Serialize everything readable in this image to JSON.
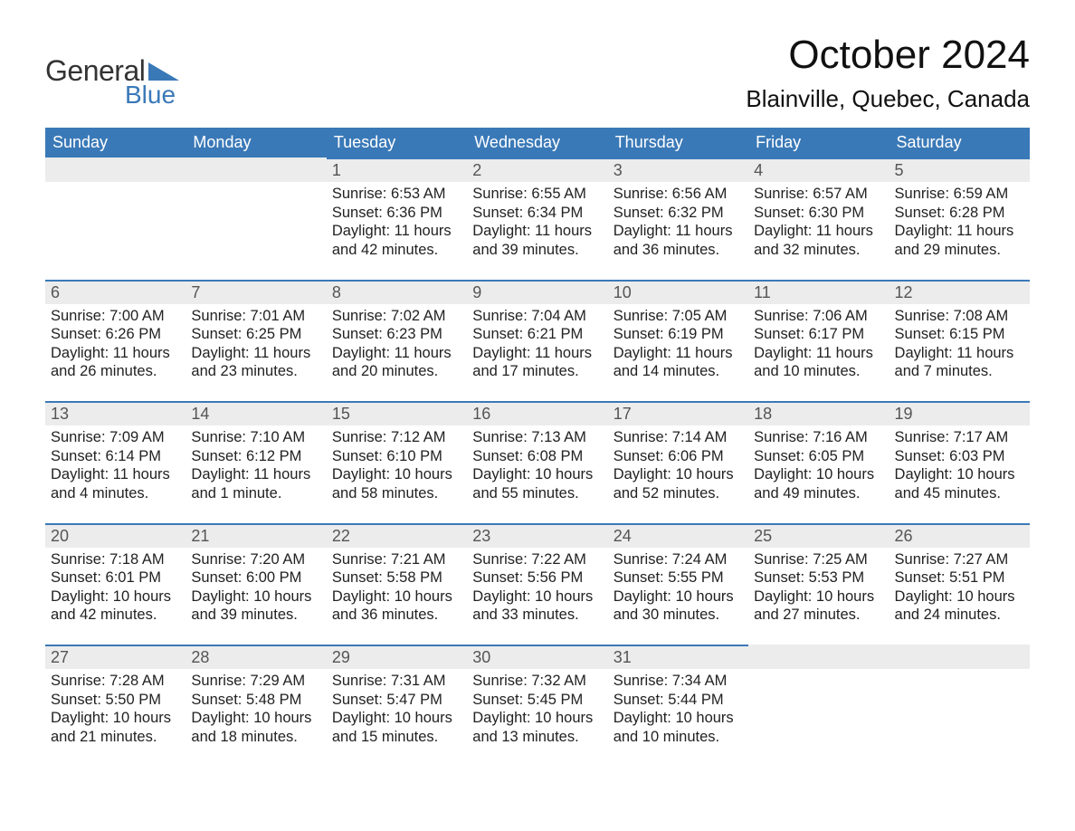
{
  "brand": {
    "part1": "General",
    "part2": "Blue",
    "logo_color": "#3a79b7"
  },
  "title": "October 2024",
  "location": "Blainville, Quebec, Canada",
  "colors": {
    "header_bg": "#3a79b7",
    "daynum_bg": "#ececec",
    "border_top": "#3a79b7",
    "text": "#111111"
  },
  "daysOfWeek": [
    "Sunday",
    "Monday",
    "Tuesday",
    "Wednesday",
    "Thursday",
    "Friday",
    "Saturday"
  ],
  "weeks": [
    [
      {
        "blank": true
      },
      {
        "blank": true
      },
      {
        "day": 1,
        "sunrise": "6:53 AM",
        "sunset": "6:36 PM",
        "daylight": "11 hours and 42 minutes."
      },
      {
        "day": 2,
        "sunrise": "6:55 AM",
        "sunset": "6:34 PM",
        "daylight": "11 hours and 39 minutes."
      },
      {
        "day": 3,
        "sunrise": "6:56 AM",
        "sunset": "6:32 PM",
        "daylight": "11 hours and 36 minutes."
      },
      {
        "day": 4,
        "sunrise": "6:57 AM",
        "sunset": "6:30 PM",
        "daylight": "11 hours and 32 minutes."
      },
      {
        "day": 5,
        "sunrise": "6:59 AM",
        "sunset": "6:28 PM",
        "daylight": "11 hours and 29 minutes."
      }
    ],
    [
      {
        "day": 6,
        "sunrise": "7:00 AM",
        "sunset": "6:26 PM",
        "daylight": "11 hours and 26 minutes."
      },
      {
        "day": 7,
        "sunrise": "7:01 AM",
        "sunset": "6:25 PM",
        "daylight": "11 hours and 23 minutes."
      },
      {
        "day": 8,
        "sunrise": "7:02 AM",
        "sunset": "6:23 PM",
        "daylight": "11 hours and 20 minutes."
      },
      {
        "day": 9,
        "sunrise": "7:04 AM",
        "sunset": "6:21 PM",
        "daylight": "11 hours and 17 minutes."
      },
      {
        "day": 10,
        "sunrise": "7:05 AM",
        "sunset": "6:19 PM",
        "daylight": "11 hours and 14 minutes."
      },
      {
        "day": 11,
        "sunrise": "7:06 AM",
        "sunset": "6:17 PM",
        "daylight": "11 hours and 10 minutes."
      },
      {
        "day": 12,
        "sunrise": "7:08 AM",
        "sunset": "6:15 PM",
        "daylight": "11 hours and 7 minutes."
      }
    ],
    [
      {
        "day": 13,
        "sunrise": "7:09 AM",
        "sunset": "6:14 PM",
        "daylight": "11 hours and 4 minutes."
      },
      {
        "day": 14,
        "sunrise": "7:10 AM",
        "sunset": "6:12 PM",
        "daylight": "11 hours and 1 minute."
      },
      {
        "day": 15,
        "sunrise": "7:12 AM",
        "sunset": "6:10 PM",
        "daylight": "10 hours and 58 minutes."
      },
      {
        "day": 16,
        "sunrise": "7:13 AM",
        "sunset": "6:08 PM",
        "daylight": "10 hours and 55 minutes."
      },
      {
        "day": 17,
        "sunrise": "7:14 AM",
        "sunset": "6:06 PM",
        "daylight": "10 hours and 52 minutes."
      },
      {
        "day": 18,
        "sunrise": "7:16 AM",
        "sunset": "6:05 PM",
        "daylight": "10 hours and 49 minutes."
      },
      {
        "day": 19,
        "sunrise": "7:17 AM",
        "sunset": "6:03 PM",
        "daylight": "10 hours and 45 minutes."
      }
    ],
    [
      {
        "day": 20,
        "sunrise": "7:18 AM",
        "sunset": "6:01 PM",
        "daylight": "10 hours and 42 minutes."
      },
      {
        "day": 21,
        "sunrise": "7:20 AM",
        "sunset": "6:00 PM",
        "daylight": "10 hours and 39 minutes."
      },
      {
        "day": 22,
        "sunrise": "7:21 AM",
        "sunset": "5:58 PM",
        "daylight": "10 hours and 36 minutes."
      },
      {
        "day": 23,
        "sunrise": "7:22 AM",
        "sunset": "5:56 PM",
        "daylight": "10 hours and 33 minutes."
      },
      {
        "day": 24,
        "sunrise": "7:24 AM",
        "sunset": "5:55 PM",
        "daylight": "10 hours and 30 minutes."
      },
      {
        "day": 25,
        "sunrise": "7:25 AM",
        "sunset": "5:53 PM",
        "daylight": "10 hours and 27 minutes."
      },
      {
        "day": 26,
        "sunrise": "7:27 AM",
        "sunset": "5:51 PM",
        "daylight": "10 hours and 24 minutes."
      }
    ],
    [
      {
        "day": 27,
        "sunrise": "7:28 AM",
        "sunset": "5:50 PM",
        "daylight": "10 hours and 21 minutes."
      },
      {
        "day": 28,
        "sunrise": "7:29 AM",
        "sunset": "5:48 PM",
        "daylight": "10 hours and 18 minutes."
      },
      {
        "day": 29,
        "sunrise": "7:31 AM",
        "sunset": "5:47 PM",
        "daylight": "10 hours and 15 minutes."
      },
      {
        "day": 30,
        "sunrise": "7:32 AM",
        "sunset": "5:45 PM",
        "daylight": "10 hours and 13 minutes."
      },
      {
        "day": 31,
        "sunrise": "7:34 AM",
        "sunset": "5:44 PM",
        "daylight": "10 hours and 10 minutes."
      },
      {
        "blank": true
      },
      {
        "blank": true
      }
    ]
  ],
  "labels": {
    "sunrise": "Sunrise: ",
    "sunset": "Sunset: ",
    "daylight": "Daylight: "
  }
}
